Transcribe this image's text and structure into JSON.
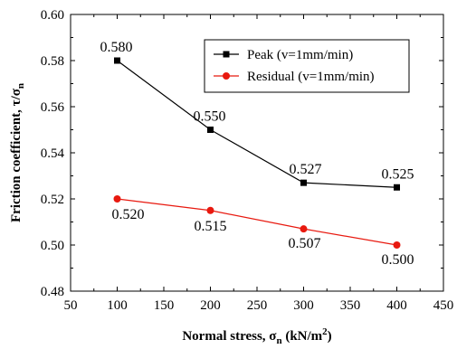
{
  "chart_data": {
    "type": "line",
    "x": [
      100,
      200,
      300,
      400
    ],
    "series": [
      {
        "name": "Peak (v=1mm/min)",
        "values": [
          0.58,
          0.55,
          0.527,
          0.525
        ],
        "labels": [
          "0.580",
          "0.550",
          "0.527",
          "0.525"
        ],
        "color": "#000000",
        "marker": "square"
      },
      {
        "name": "Residual (v=1mm/min)",
        "values": [
          0.52,
          0.515,
          0.507,
          0.5
        ],
        "labels": [
          "0.520",
          "0.515",
          "0.507",
          "0.500"
        ],
        "color": "#e8190f",
        "marker": "circle"
      }
    ],
    "xlabel": "Normal stress, σn (kN/m²)",
    "ylabel": "Friction coefficient, τ/σn",
    "xlim": [
      50,
      450
    ],
    "ylim": [
      0.48,
      0.6
    ],
    "xticks": [
      50,
      100,
      150,
      200,
      250,
      300,
      350,
      400,
      450
    ],
    "xtick_labels": [
      "50",
      "100",
      "150",
      "200",
      "250",
      "300",
      "350",
      "400",
      "450"
    ],
    "yticks": [
      0.48,
      0.5,
      0.52,
      0.54,
      0.56,
      0.58,
      0.6
    ],
    "ytick_labels": [
      "0.48",
      "0.50",
      "0.52",
      "0.54",
      "0.56",
      "0.58",
      "0.60"
    ],
    "grid": false,
    "legend_position": "top-right"
  }
}
